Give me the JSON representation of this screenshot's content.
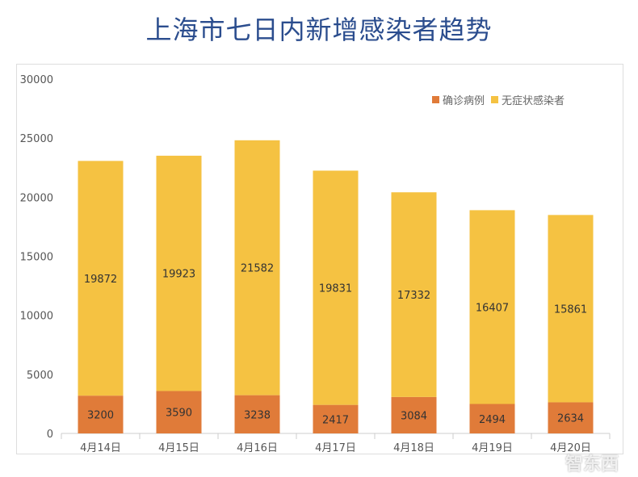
{
  "title": "上海市七日内新增感染者趋势",
  "watermark": "智东西",
  "chart_data": {
    "type": "bar",
    "stacked": true,
    "title": "上海市七日内新增感染者趋势",
    "categories": [
      "4月14日",
      "4月15日",
      "4月16日",
      "4月17日",
      "4月18日",
      "4月19日",
      "4月20日"
    ],
    "series": [
      {
        "name": "确诊病例",
        "color": "#e07b39",
        "values": [
          3200,
          3590,
          3238,
          2417,
          3084,
          2494,
          2634
        ]
      },
      {
        "name": "无症状感染者",
        "color": "#f5c242",
        "values": [
          19872,
          19923,
          21582,
          19831,
          17332,
          16407,
          15861
        ]
      }
    ],
    "yticks": [
      0,
      5000,
      10000,
      15000,
      20000,
      25000,
      30000
    ],
    "ylim": [
      0,
      30000
    ],
    "grid": false,
    "legend": "top-right"
  }
}
